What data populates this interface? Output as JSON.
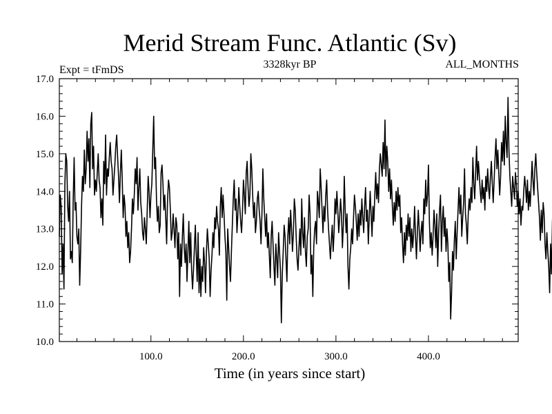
{
  "chart_data": {
    "type": "line",
    "title": "Merid Stream Func. Atlantic (Sv)",
    "left_label": "Expt = tFmDS",
    "center_label": "3328kyr BP",
    "right_label": "ALL_MONTHS",
    "xlabel": "Time (in years since start)",
    "ylabel": "",
    "xlim": [
      1,
      497
    ],
    "ylim": [
      10.0,
      17.0
    ],
    "xticks": [
      100,
      200,
      300,
      400
    ],
    "xtick_labels": [
      "100.0",
      "200.0",
      "300.0",
      "400.0"
    ],
    "yticks": [
      10,
      11,
      12,
      13,
      14,
      15,
      16,
      17
    ],
    "ytick_labels": [
      "10.0",
      "11.0",
      "12.0",
      "13.0",
      "14.0",
      "15.0",
      "16.0",
      "17.0"
    ],
    "series": [
      {
        "name": "Atlantic MOC",
        "color": "#000000",
        "x_start": 1,
        "x_step": 1,
        "values": [
          12.8,
          13.9,
          13.6,
          11.8,
          12.6,
          11.4,
          14.2,
          15.0,
          14.8,
          13.6,
          13.2,
          14.0,
          12.2,
          12.4,
          12.1,
          13.8,
          14.9,
          13.5,
          13.7,
          12.8,
          12.6,
          13.0,
          11.5,
          12.4,
          13.6,
          14.4,
          14.0,
          15.1,
          14.2,
          14.6,
          15.6,
          14.8,
          15.4,
          14.1,
          15.8,
          16.1,
          14.6,
          15.2,
          13.9,
          14.3,
          14.0,
          14.5,
          15.0,
          14.3,
          14.1,
          13.3,
          13.8,
          13.1,
          14.8,
          14.2,
          15.5,
          13.9,
          14.6,
          14.4,
          14.9,
          15.3,
          14.8,
          14.6,
          13.9,
          14.3,
          14.7,
          15.2,
          15.5,
          14.9,
          14.4,
          13.7,
          14.5,
          15.1,
          14.3,
          13.3,
          13.9,
          13.6,
          12.8,
          13.2,
          12.5,
          12.9,
          12.1,
          12.4,
          13.0,
          13.8,
          13.4,
          13.9,
          14.6,
          14.2,
          14.9,
          13.5,
          14.1,
          14.6,
          13.7,
          13.4,
          12.9,
          12.7,
          13.3,
          13.0,
          12.6,
          13.5,
          14.4,
          14.0,
          13.3,
          13.9,
          14.2,
          15.1,
          16.0,
          14.6,
          14.9,
          13.8,
          13.2,
          13.6,
          12.9,
          13.1,
          14.5,
          14.7,
          14.2,
          13.5,
          13.9,
          13.3,
          12.6,
          13.8,
          14.3,
          14.1,
          13.5,
          12.7,
          12.9,
          13.4,
          13.0,
          12.5,
          13.3,
          13.1,
          12.2,
          12.9,
          11.2,
          12.6,
          12.0,
          12.8,
          13.4,
          12.5,
          12.1,
          12.6,
          11.6,
          12.4,
          13.2,
          12.1,
          12.9,
          11.9,
          11.4,
          11.9,
          12.5,
          13.1,
          12.3,
          11.6,
          12.9,
          11.3,
          12.2,
          11.2,
          12.0,
          11.6,
          12.5,
          12.1,
          11.3,
          12.4,
          13.0,
          12.6,
          12.2,
          11.2,
          11.9,
          12.3,
          12.9,
          12.5,
          13.3,
          13.0,
          13.6,
          13.2,
          13.0,
          12.3,
          13.6,
          14.1,
          13.3,
          13.9,
          13.4,
          12.8,
          12.4,
          11.1,
          13.0,
          12.5,
          12.0,
          11.6,
          12.4,
          13.1,
          13.8,
          14.3,
          13.5,
          13.8,
          12.9,
          13.4,
          14.1,
          13.6,
          13.2,
          12.9,
          13.5,
          14.3,
          13.9,
          13.4,
          14.5,
          14.8,
          14.1,
          13.6,
          13.9,
          15.0,
          14.6,
          13.9,
          13.3,
          13.7,
          12.9,
          13.2,
          13.8,
          14.0,
          13.5,
          13.2,
          12.6,
          13.4,
          14.6,
          13.8,
          13.3,
          12.8,
          13.4,
          12.5,
          12.9,
          12.3,
          11.7,
          12.8,
          13.2,
          12.6,
          12.0,
          11.5,
          12.6,
          12.2,
          11.7,
          12.9,
          12.4,
          11.9,
          10.5,
          11.8,
          12.4,
          13.1,
          12.8,
          12.2,
          11.6,
          12.8,
          13.3,
          12.6,
          13.5,
          13.0,
          12.4,
          12.9,
          13.8,
          13.5,
          12.8,
          12.2,
          11.9,
          12.5,
          13.0,
          12.3,
          13.8,
          12.9,
          12.5,
          13.3,
          12.4,
          12.0,
          12.8,
          13.0,
          13.9,
          13.4,
          11.8,
          12.3,
          11.2,
          12.5,
          13.0,
          13.2,
          12.6,
          14.0,
          13.7,
          13.3,
          14.6,
          14.1,
          13.5,
          12.9,
          13.6,
          13.2,
          13.9,
          14.3,
          13.5,
          13.0,
          12.6,
          12.2,
          12.7,
          13.1,
          12.4,
          12.9,
          13.8,
          13.4,
          14.0,
          13.5,
          12.9,
          13.3,
          13.8,
          13.4,
          12.5,
          13.1,
          14.4,
          13.5,
          12.9,
          13.4,
          12.0,
          11.4,
          12.2,
          12.5,
          13.0,
          12.6,
          13.3,
          13.9,
          13.6,
          13.2,
          12.7,
          13.4,
          12.8,
          13.5,
          13.1,
          13.8,
          13.3,
          12.9,
          13.6,
          14.1,
          13.2,
          13.5,
          12.6,
          13.3,
          14.0,
          13.4,
          12.8,
          13.6,
          13.2,
          13.9,
          14.5,
          13.8,
          14.2,
          13.7,
          14.6,
          15.0,
          14.7,
          14.4,
          15.3,
          14.6,
          15.9,
          14.4,
          15.2,
          14.8,
          14.0,
          14.6,
          13.8,
          14.3,
          13.6,
          13.1,
          13.7,
          13.2,
          14.0,
          13.5,
          14.1,
          13.6,
          13.9,
          12.9,
          13.3,
          12.6,
          12.1,
          12.9,
          12.3,
          13.1,
          12.7,
          13.4,
          12.8,
          13.3,
          12.4,
          13.0,
          12.5,
          12.9,
          13.6,
          12.8,
          12.2,
          12.9,
          13.5,
          13.0,
          12.4,
          12.9,
          13.2,
          12.6,
          13.8,
          13.4,
          14.3,
          13.6,
          13.9,
          14.7,
          13.2,
          12.5,
          12.9,
          12.3,
          12.8,
          13.5,
          13.1,
          12.5,
          13.4,
          12.0,
          12.9,
          13.5,
          13.9,
          12.4,
          13.2,
          13.6,
          12.8,
          13.3,
          12.4,
          13.0,
          12.6,
          11.6,
          12.1,
          10.6,
          11.3,
          12.4,
          11.9,
          12.7,
          13.2,
          12.2,
          12.9,
          13.5,
          14.1,
          13.4,
          13.9,
          12.8,
          13.3,
          13.7,
          14.6,
          13.4,
          13.1,
          12.6,
          13.4,
          13.8,
          13.5,
          14.1,
          13.7,
          14.9,
          14.2,
          13.8,
          14.5,
          15.2,
          14.3,
          14.8,
          14.4,
          14.0,
          13.7,
          14.3,
          13.8,
          14.1,
          13.5,
          14.4,
          14.0,
          14.6,
          14.1,
          13.8,
          14.4,
          14.8,
          14.2,
          13.7,
          14.3,
          14.9,
          15.4,
          14.6,
          15.1,
          14.5,
          13.9,
          14.4,
          15.3,
          14.8,
          15.6,
          14.7,
          16.0,
          15.3,
          14.9,
          16.5,
          15.1,
          14.4,
          14.0,
          13.6,
          14.4,
          14.1,
          13.8,
          14.5,
          14.2,
          13.6,
          14.0,
          13.4,
          13.8,
          13.1,
          13.6,
          13.5,
          14.0,
          14.4,
          14.1,
          13.7,
          14.3,
          13.5,
          14.0,
          13.6,
          14.2,
          14.8,
          14.3,
          13.9,
          14.6,
          15.0,
          14.5,
          14.1,
          13.7,
          13.3,
          12.7,
          13.5,
          12.9,
          13.7,
          13.4,
          12.6,
          12.2,
          12.9,
          12.4,
          12.0,
          11.3,
          12.6,
          11.8,
          13.2,
          13.8,
          13.5,
          13.1,
          12.4,
          13.6,
          13.0,
          12.3,
          13.1,
          13.9,
          13.4,
          14.0
        ]
      }
    ]
  }
}
